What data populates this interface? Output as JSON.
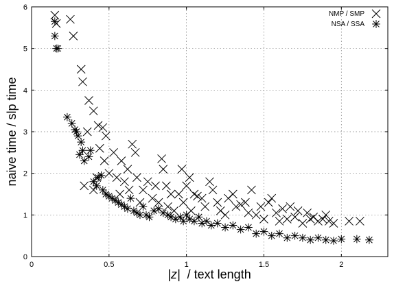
{
  "chart_data": {
    "type": "scatter",
    "title": "",
    "xlabel_math": "|z|",
    "xlabel_rest": "/ text length",
    "ylabel": "naive time / slp time",
    "xlim": [
      0,
      2.3
    ],
    "ylim": [
      0,
      6
    ],
    "x_ticks": [
      0,
      0.5,
      1,
      1.5,
      2
    ],
    "x_tick_labels": [
      "0",
      "0.5",
      "1",
      "1.5",
      "2"
    ],
    "y_ticks": [
      0,
      1,
      2,
      3,
      4,
      5,
      6
    ],
    "y_tick_labels": [
      "0",
      "1",
      "2",
      "3",
      "4",
      "5",
      "6"
    ],
    "grid": true,
    "legend_position": "top-right",
    "series": [
      {
        "name": "NMP / SMP",
        "marker": "x",
        "points": [
          [
            0.15,
            5.8
          ],
          [
            0.16,
            5.6
          ],
          [
            0.25,
            5.7
          ],
          [
            0.27,
            5.3
          ],
          [
            0.32,
            4.5
          ],
          [
            0.33,
            4.2
          ],
          [
            0.37,
            3.75
          ],
          [
            0.4,
            3.5
          ],
          [
            0.43,
            3.15
          ],
          [
            0.46,
            3.1
          ],
          [
            0.48,
            2.9
          ],
          [
            0.44,
            2.6
          ],
          [
            0.36,
            3.0
          ],
          [
            0.34,
            1.7
          ],
          [
            0.4,
            1.6
          ],
          [
            0.42,
            1.9
          ],
          [
            0.47,
            2.3
          ],
          [
            0.5,
            2.0
          ],
          [
            0.53,
            2.5
          ],
          [
            0.55,
            1.9
          ],
          [
            0.57,
            1.5
          ],
          [
            0.58,
            2.3
          ],
          [
            0.6,
            1.8
          ],
          [
            0.62,
            2.1
          ],
          [
            0.63,
            1.6
          ],
          [
            0.65,
            2.7
          ],
          [
            0.67,
            2.5
          ],
          [
            0.68,
            1.9
          ],
          [
            0.7,
            1.3
          ],
          [
            0.72,
            1.6
          ],
          [
            0.75,
            1.8
          ],
          [
            0.78,
            1.4
          ],
          [
            0.8,
            1.7
          ],
          [
            0.82,
            1.3
          ],
          [
            0.85,
            2.1
          ],
          [
            0.87,
            1.7
          ],
          [
            0.84,
            2.35
          ],
          [
            0.88,
            1.2
          ],
          [
            0.9,
            1.5
          ],
          [
            0.92,
            1.1
          ],
          [
            0.95,
            1.5
          ],
          [
            0.97,
            2.1
          ],
          [
            0.98,
            1.3
          ],
          [
            1.0,
            1.7
          ],
          [
            1.02,
            1.9
          ],
          [
            1.03,
            1.1
          ],
          [
            1.05,
            1.5
          ],
          [
            1.07,
            1.45
          ],
          [
            1.1,
            1.4
          ],
          [
            1.12,
            1.2
          ],
          [
            1.15,
            1.8
          ],
          [
            1.17,
            1.6
          ],
          [
            1.2,
            1.3
          ],
          [
            1.22,
            1.1
          ],
          [
            1.25,
            1.0
          ],
          [
            1.27,
            1.4
          ],
          [
            1.3,
            1.5
          ],
          [
            1.32,
            1.2
          ],
          [
            1.35,
            1.25
          ],
          [
            1.38,
            1.3
          ],
          [
            1.4,
            1.05
          ],
          [
            1.42,
            1.6
          ],
          [
            1.45,
            1.0
          ],
          [
            1.48,
            1.2
          ],
          [
            1.5,
            0.9
          ],
          [
            1.53,
            1.3
          ],
          [
            1.55,
            1.4
          ],
          [
            1.58,
            1.05
          ],
          [
            1.6,
            0.85
          ],
          [
            1.62,
            1.15
          ],
          [
            1.65,
            0.9
          ],
          [
            1.67,
            1.2
          ],
          [
            1.7,
            0.95
          ],
          [
            1.72,
            1.1
          ],
          [
            1.75,
            0.8
          ],
          [
            1.78,
            1.05
          ],
          [
            1.8,
            0.9
          ],
          [
            1.82,
            0.95
          ],
          [
            1.85,
            0.85
          ],
          [
            1.88,
            0.9
          ],
          [
            1.9,
            1.0
          ],
          [
            1.92,
            0.85
          ],
          [
            1.95,
            0.8
          ],
          [
            2.05,
            0.85
          ],
          [
            2.12,
            0.85
          ]
        ]
      },
      {
        "name": "NSA / SSA",
        "marker": "star",
        "points": [
          [
            0.15,
            5.65
          ],
          [
            0.15,
            5.3
          ],
          [
            0.16,
            5.0
          ],
          [
            0.17,
            5.0
          ],
          [
            0.23,
            3.35
          ],
          [
            0.26,
            3.2
          ],
          [
            0.28,
            3.05
          ],
          [
            0.29,
            3.0
          ],
          [
            0.3,
            2.9
          ],
          [
            0.32,
            2.75
          ],
          [
            0.33,
            2.55
          ],
          [
            0.31,
            2.45
          ],
          [
            0.34,
            2.3
          ],
          [
            0.37,
            2.4
          ],
          [
            0.38,
            2.55
          ],
          [
            0.4,
            1.8
          ],
          [
            0.42,
            1.7
          ],
          [
            0.43,
            1.9
          ],
          [
            0.45,
            1.95
          ],
          [
            0.46,
            1.6
          ],
          [
            0.48,
            1.5
          ],
          [
            0.5,
            1.45
          ],
          [
            0.52,
            1.4
          ],
          [
            0.54,
            1.35
          ],
          [
            0.56,
            1.3
          ],
          [
            0.58,
            1.25
          ],
          [
            0.6,
            1.2
          ],
          [
            0.62,
            1.15
          ],
          [
            0.64,
            1.4
          ],
          [
            0.66,
            1.1
          ],
          [
            0.68,
            1.05
          ],
          [
            0.7,
            1.0
          ],
          [
            0.72,
            1.2
          ],
          [
            0.74,
            1.0
          ],
          [
            0.76,
            0.95
          ],
          [
            0.79,
            1.1
          ],
          [
            0.82,
            1.15
          ],
          [
            0.85,
            1.05
          ],
          [
            0.88,
            1.0
          ],
          [
            0.9,
            0.95
          ],
          [
            0.93,
            0.9
          ],
          [
            0.96,
            0.95
          ],
          [
            0.98,
            0.85
          ],
          [
            1.0,
            1.0
          ],
          [
            1.02,
            0.9
          ],
          [
            1.05,
            0.85
          ],
          [
            1.08,
            0.95
          ],
          [
            1.1,
            0.8
          ],
          [
            1.13,
            0.85
          ],
          [
            1.16,
            0.75
          ],
          [
            1.2,
            0.8
          ],
          [
            1.25,
            0.7
          ],
          [
            1.3,
            0.75
          ],
          [
            1.35,
            0.65
          ],
          [
            1.4,
            0.7
          ],
          [
            1.45,
            0.55
          ],
          [
            1.5,
            0.6
          ],
          [
            1.55,
            0.5
          ],
          [
            1.6,
            0.55
          ],
          [
            1.65,
            0.45
          ],
          [
            1.7,
            0.5
          ],
          [
            1.75,
            0.45
          ],
          [
            1.8,
            0.4
          ],
          [
            1.85,
            0.45
          ],
          [
            1.9,
            0.4
          ],
          [
            1.95,
            0.38
          ],
          [
            2.0,
            0.42
          ],
          [
            2.1,
            0.42
          ],
          [
            2.18,
            0.4
          ]
        ]
      }
    ]
  }
}
